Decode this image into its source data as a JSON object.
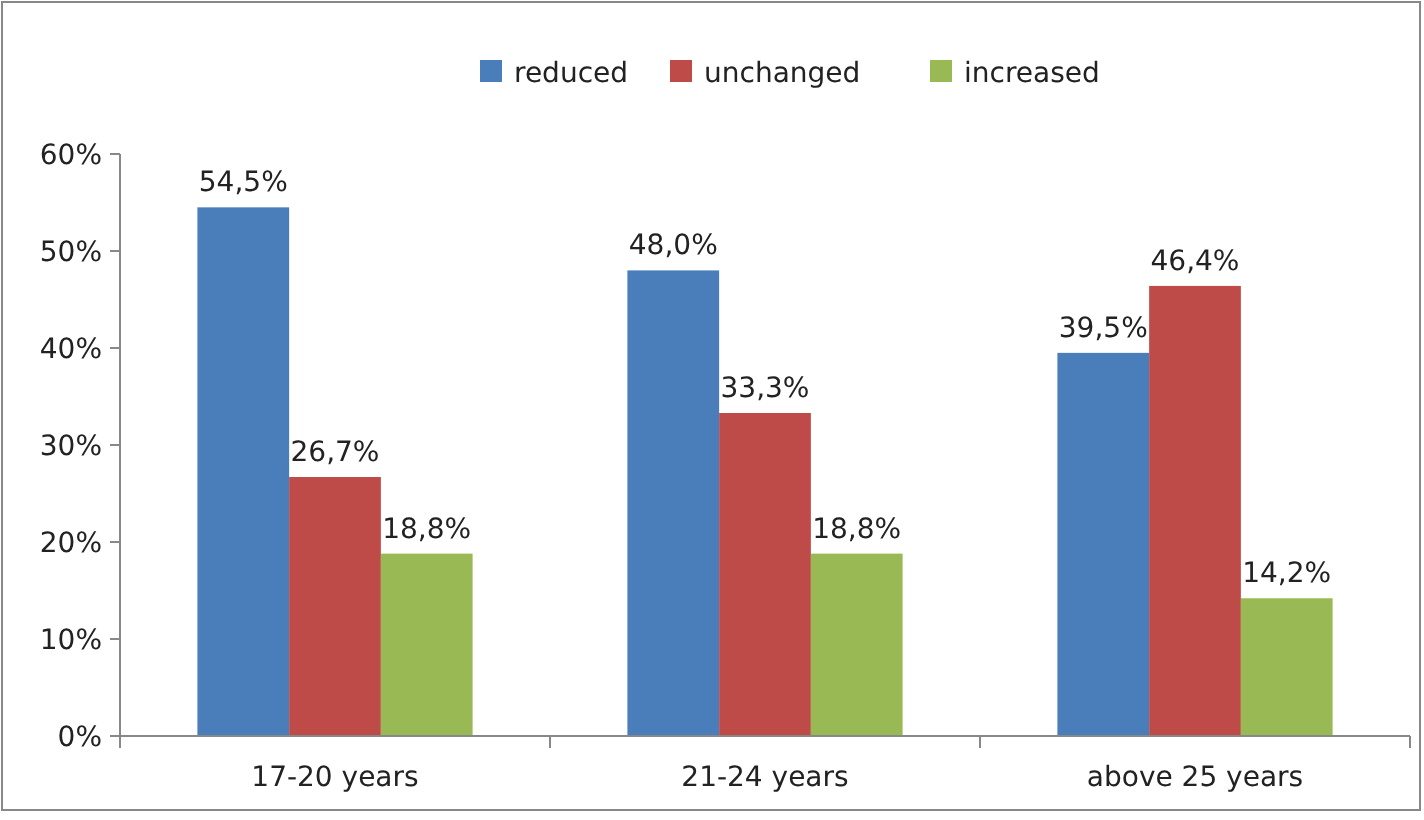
{
  "chart_data": {
    "type": "bar",
    "categories": [
      "17-20 years",
      "21-24 years",
      "above 25 years"
    ],
    "series": [
      {
        "name": "reduced",
        "color": "#4a7ebb",
        "values": [
          54.5,
          48.0,
          39.5
        ],
        "value_labels": [
          "54,5%",
          "48,0%",
          "39,5%"
        ]
      },
      {
        "name": "unchanged",
        "color": "#be4b48",
        "values": [
          26.7,
          33.3,
          46.4
        ],
        "value_labels": [
          "26,7%",
          "33,3%",
          "46,4%"
        ]
      },
      {
        "name": "increased",
        "color": "#98b954",
        "values": [
          18.8,
          18.8,
          14.2
        ],
        "value_labels": [
          "18,8%",
          "18,8%",
          "14,2%"
        ]
      }
    ],
    "ylim": [
      0,
      60
    ],
    "yticks": [
      {
        "value": 0,
        "label": "0%"
      },
      {
        "value": 10,
        "label": "10%"
      },
      {
        "value": 20,
        "label": "20%"
      },
      {
        "value": 30,
        "label": "30%"
      },
      {
        "value": 40,
        "label": "40%"
      },
      {
        "value": 50,
        "label": "50%"
      },
      {
        "value": 60,
        "label": "60%"
      }
    ],
    "grid": false,
    "legend": "top"
  }
}
